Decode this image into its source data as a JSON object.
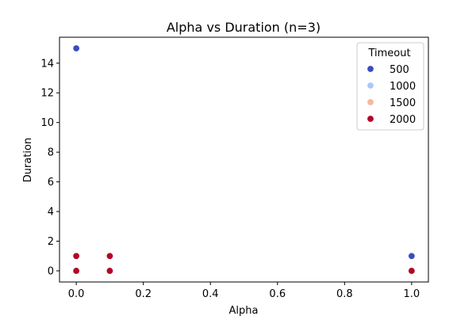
{
  "chart_data": {
    "type": "scatter",
    "title": "Alpha vs Duration (n=3)",
    "xlabel": "Alpha",
    "ylabel": "Duration",
    "xlim": [
      -0.05,
      1.05
    ],
    "ylim": [
      -0.75,
      15.75
    ],
    "xticks": [
      0.0,
      0.2,
      0.4,
      0.6,
      0.8,
      1.0
    ],
    "xtick_labels": [
      "0.0",
      "0.2",
      "0.4",
      "0.6",
      "0.8",
      "1.0"
    ],
    "yticks": [
      0,
      2,
      4,
      6,
      8,
      10,
      12,
      14
    ],
    "ytick_labels": [
      "0",
      "2",
      "4",
      "6",
      "8",
      "10",
      "12",
      "14"
    ],
    "grid": false,
    "legend": {
      "title": "Timeout",
      "placement": "top-right",
      "entries": [
        {
          "label": "500",
          "color": "#3b4cc0"
        },
        {
          "label": "1000",
          "color": "#aac7fd"
        },
        {
          "label": "1500",
          "color": "#f7b89c"
        },
        {
          "label": "2000",
          "color": "#b40426"
        }
      ]
    },
    "series": [
      {
        "name": "500",
        "color": "#3b4cc0",
        "points": [
          {
            "x": 0.0,
            "y": 15
          },
          {
            "x": 1.0,
            "y": 1
          }
        ]
      },
      {
        "name": "1000",
        "color": "#aac7fd",
        "points": []
      },
      {
        "name": "1500",
        "color": "#f7b89c",
        "points": []
      },
      {
        "name": "2000",
        "color": "#b40426",
        "points": [
          {
            "x": 0.0,
            "y": 1
          },
          {
            "x": 0.0,
            "y": 0
          },
          {
            "x": 0.1,
            "y": 1
          },
          {
            "x": 0.1,
            "y": 0
          },
          {
            "x": 1.0,
            "y": 0
          }
        ]
      }
    ]
  }
}
